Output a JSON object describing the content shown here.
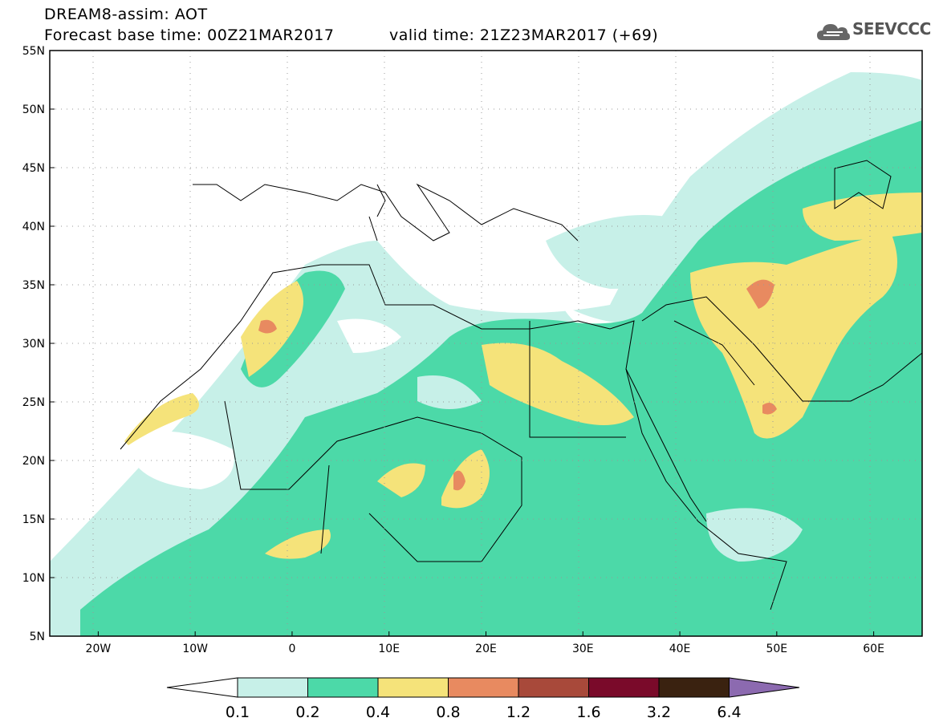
{
  "header": {
    "line1": "DREAM8-assim: AOT",
    "line2": "Forecast base time: 00Z21MAR2017",
    "valid": "valid time: 21Z23MAR2017 (+69)"
  },
  "logo": {
    "text": "SEEVCCC",
    "icon": "cloud-icon"
  },
  "map": {
    "lat_labels": [
      "55N",
      "50N",
      "45N",
      "40N",
      "35N",
      "30N",
      "25N",
      "20N",
      "15N",
      "10N",
      "5N"
    ],
    "lon_labels": [
      "20W",
      "10W",
      "0",
      "10E",
      "20E",
      "30E",
      "40E",
      "50E",
      "60E"
    ],
    "lon_range": [
      -25,
      65
    ],
    "lat_range": [
      5,
      55
    ],
    "grid": "dotted"
  },
  "colorbar": {
    "labels": [
      "0.1",
      "0.2",
      "0.4",
      "0.8",
      "1.2",
      "1.6",
      "3.2",
      "6.4"
    ],
    "colors": [
      "#ffffff",
      "#c7f0e8",
      "#4cd9a8",
      "#f5e37a",
      "#e88a60",
      "#a8493a",
      "#7a0a2a",
      "#3a2210",
      "#8c6ab0"
    ]
  }
}
